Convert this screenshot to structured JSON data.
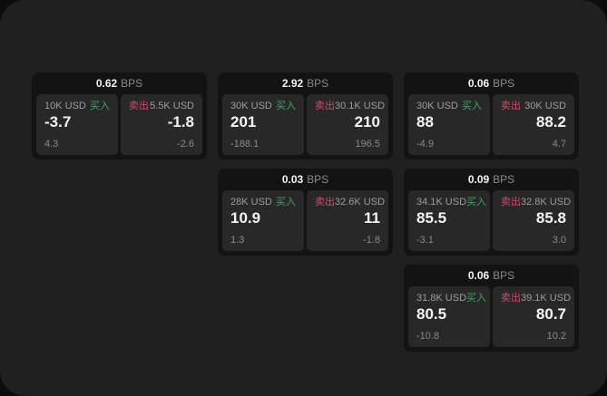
{
  "labels": {
    "bps_unit": "BPS",
    "buy": "买入",
    "sell": "卖出"
  },
  "colors": {
    "outer_bg": "#0c0c0c",
    "panel_bg": "#202020",
    "card_bg": "#131313",
    "tile_bg": "#282828",
    "buy_green": "#40a566",
    "sell_red": "#cf4a6a",
    "text_white": "#f5f5f5",
    "text_gray": "#9d9d9d",
    "text_dim": "#8a8a8a"
  },
  "cards": [
    {
      "bps": "0.62",
      "buy": {
        "amount": "10K USD",
        "side": "买入",
        "price": "-3.7",
        "delta": "4.3"
      },
      "sell": {
        "side": "卖出",
        "amount": "5.5K USD",
        "price": "-1.8",
        "delta": "-2.6"
      }
    },
    {
      "bps": "2.92",
      "buy": {
        "amount": "30K USD",
        "side": "买入",
        "price": "201",
        "delta": "-188.1"
      },
      "sell": {
        "side": "卖出",
        "amount": "30.1K USD",
        "price": "210",
        "delta": "196.5"
      }
    },
    {
      "bps": "0.06",
      "buy": {
        "amount": "30K USD",
        "side": "买入",
        "price": "88",
        "delta": "-4.9"
      },
      "sell": {
        "side": "卖出",
        "amount": "30K USD",
        "price": "88.2",
        "delta": "4.7"
      }
    },
    {
      "bps": "0.03",
      "buy": {
        "amount": "28K USD",
        "side": "买入",
        "price": "10.9",
        "delta": "1.3"
      },
      "sell": {
        "side": "卖出",
        "amount": "32.6K USD",
        "price": "11",
        "delta": "-1.8"
      }
    },
    {
      "bps": "0.09",
      "buy": {
        "amount": "34.1K USD",
        "side": "买入",
        "price": "85.5",
        "delta": "-3.1"
      },
      "sell": {
        "side": "卖出",
        "amount": "32.8K USD",
        "price": "85.8",
        "delta": "3.0"
      }
    },
    {
      "bps": "0.06",
      "buy": {
        "amount": "31.8K USD",
        "side": "买入",
        "price": "80.5",
        "delta": "-10.8"
      },
      "sell": {
        "side": "卖出",
        "amount": "39.1K USD",
        "price": "80.7",
        "delta": "10.2"
      }
    }
  ]
}
